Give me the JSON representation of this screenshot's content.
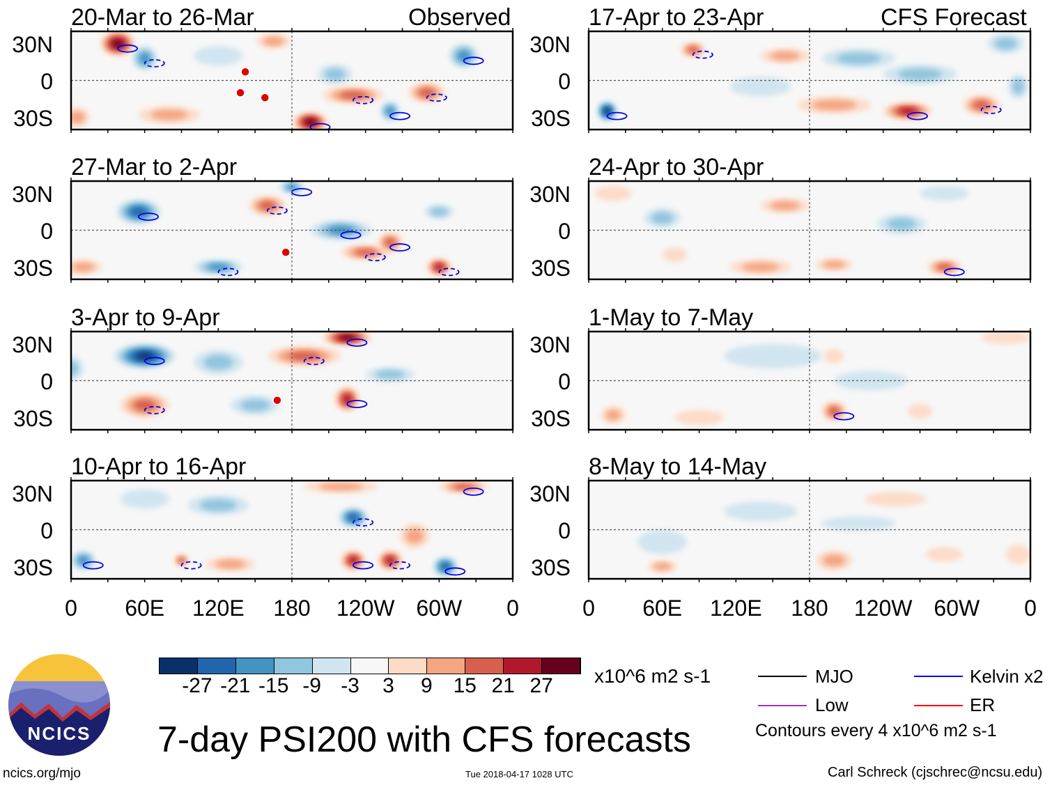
{
  "headers": {
    "observed": "Observed",
    "forecast": "CFS Forecast"
  },
  "lat_labels": [
    "30N",
    "0",
    "30S"
  ],
  "lon_labels": [
    "0",
    "60E",
    "120E",
    "180",
    "120W",
    "60W",
    "0"
  ],
  "panels": [
    {
      "title": "20-Mar to 26-Mar",
      "blobs": [
        [
          38,
          30,
          27,
          14,
          10
        ],
        [
          60,
          18,
          -18,
          10,
          10
        ],
        [
          120,
          20,
          -6,
          20,
          8
        ],
        [
          165,
          32,
          12,
          14,
          6
        ],
        [
          215,
          5,
          -12,
          14,
          8
        ],
        [
          195,
          -34,
          27,
          14,
          8
        ],
        [
          230,
          -12,
          18,
          25,
          7
        ],
        [
          260,
          -25,
          -15,
          8,
          8
        ],
        [
          290,
          -10,
          15,
          15,
          8
        ],
        [
          320,
          20,
          -18,
          12,
          10
        ],
        [
          80,
          -28,
          9,
          25,
          7
        ],
        [
          5,
          -30,
          12,
          10,
          8
        ]
      ],
      "mjo_markers": [
        [
          142,
          7
        ],
        [
          138,
          -10
        ],
        [
          158,
          -14
        ]
      ]
    },
    {
      "title": "27-Mar to 2-Apr",
      "blobs": [
        [
          55,
          15,
          -21,
          18,
          10
        ],
        [
          160,
          20,
          15,
          15,
          8
        ],
        [
          220,
          0,
          -15,
          25,
          8
        ],
        [
          240,
          -18,
          18,
          20,
          6
        ],
        [
          260,
          -10,
          15,
          10,
          8
        ],
        [
          300,
          -30,
          21,
          10,
          7
        ],
        [
          180,
          35,
          -18,
          10,
          5
        ],
        [
          300,
          15,
          -12,
          12,
          6
        ],
        [
          120,
          -30,
          -15,
          20,
          6
        ],
        [
          10,
          -30,
          12,
          15,
          6
        ]
      ],
      "mjo_markers": [
        [
          175,
          -18
        ]
      ]
    },
    {
      "title": "3-Apr to 9-Apr",
      "blobs": [
        [
          60,
          20,
          -27,
          25,
          10
        ],
        [
          190,
          20,
          15,
          30,
          8
        ],
        [
          225,
          35,
          27,
          20,
          6
        ],
        [
          60,
          -20,
          18,
          20,
          10
        ],
        [
          150,
          -20,
          -12,
          20,
          8
        ],
        [
          225,
          -15,
          21,
          10,
          10
        ],
        [
          120,
          15,
          -9,
          20,
          10
        ],
        [
          260,
          5,
          -9,
          20,
          6
        ],
        [
          0,
          10,
          -9,
          10,
          10
        ]
      ],
      "mjo_markers": [
        [
          168,
          -16
        ]
      ]
    },
    {
      "title": "10-Apr to 16-Apr",
      "blobs": [
        [
          10,
          -25,
          -15,
          10,
          8
        ],
        [
          120,
          20,
          -9,
          25,
          8
        ],
        [
          230,
          10,
          -21,
          12,
          8
        ],
        [
          230,
          -25,
          21,
          10,
          8
        ],
        [
          260,
          -25,
          21,
          10,
          8
        ],
        [
          305,
          -30,
          -21,
          10,
          8
        ],
        [
          280,
          -5,
          9,
          12,
          10
        ],
        [
          130,
          -28,
          12,
          20,
          6
        ],
        [
          90,
          -25,
          15,
          6,
          5
        ],
        [
          220,
          35,
          12,
          30,
          5
        ],
        [
          320,
          35,
          18,
          20,
          5
        ],
        [
          60,
          25,
          -6,
          20,
          8
        ]
      ],
      "mjo_markers": []
    },
    {
      "title": "17-Apr to 23-Apr",
      "blobs": [
        [
          15,
          -25,
          -27,
          8,
          8
        ],
        [
          85,
          25,
          15,
          10,
          6
        ],
        [
          160,
          20,
          9,
          20,
          6
        ],
        [
          220,
          18,
          -12,
          30,
          8
        ],
        [
          270,
          5,
          -9,
          30,
          8
        ],
        [
          260,
          -25,
          21,
          20,
          7
        ],
        [
          320,
          -20,
          15,
          15,
          8
        ],
        [
          200,
          -20,
          12,
          30,
          7
        ],
        [
          140,
          -5,
          -6,
          25,
          8
        ],
        [
          350,
          -5,
          -12,
          8,
          10
        ],
        [
          340,
          30,
          -12,
          15,
          8
        ]
      ],
      "mjo_markers": []
    },
    {
      "title": "24-Apr to 30-Apr",
      "blobs": [
        [
          60,
          10,
          -9,
          15,
          8
        ],
        [
          160,
          20,
          9,
          20,
          6
        ],
        [
          255,
          5,
          -12,
          20,
          8
        ],
        [
          290,
          -30,
          18,
          14,
          6
        ],
        [
          140,
          -30,
          12,
          25,
          6
        ],
        [
          200,
          -28,
          12,
          15,
          5
        ],
        [
          70,
          -20,
          6,
          10,
          6
        ],
        [
          290,
          30,
          -6,
          20,
          6
        ],
        [
          20,
          30,
          6,
          15,
          6
        ]
      ],
      "mjo_markers": []
    },
    {
      "title": "1-May to 7-May",
      "blobs": [
        [
          200,
          -25,
          15,
          10,
          8
        ],
        [
          20,
          -28,
          12,
          10,
          7
        ],
        [
          150,
          20,
          -3,
          40,
          10
        ],
        [
          200,
          20,
          6,
          8,
          6
        ],
        [
          270,
          -25,
          6,
          10,
          6
        ],
        [
          90,
          -30,
          6,
          20,
          6
        ],
        [
          340,
          35,
          6,
          20,
          5
        ],
        [
          230,
          0,
          -3,
          30,
          8
        ]
      ],
      "mjo_markers": []
    },
    {
      "title": "8-May to 14-May",
      "blobs": [
        [
          60,
          -10,
          -6,
          20,
          10
        ],
        [
          200,
          -25,
          9,
          15,
          8
        ],
        [
          60,
          -30,
          9,
          12,
          5
        ],
        [
          250,
          25,
          6,
          25,
          6
        ],
        [
          290,
          -20,
          6,
          15,
          6
        ],
        [
          140,
          15,
          -6,
          30,
          8
        ],
        [
          350,
          -20,
          6,
          10,
          8
        ],
        [
          220,
          5,
          -3,
          30,
          6
        ]
      ],
      "mjo_markers": []
    }
  ],
  "colorbar": {
    "colors": [
      "#08306b",
      "#2166ac",
      "#4393c3",
      "#92c5de",
      "#d1e5f0",
      "#f7f7f7",
      "#fddbc7",
      "#f4a582",
      "#d6604d",
      "#b2182b",
      "#67001f"
    ],
    "labels": [
      "-27",
      "-21",
      "-15",
      "-9",
      "-3",
      "3",
      "9",
      "15",
      "21",
      "27"
    ],
    "units": "x10^6 m2 s-1"
  },
  "legend": {
    "items": [
      {
        "label": "MJO",
        "color": "#000000"
      },
      {
        "label": "Kelvin x2",
        "color": "#0000ff"
      },
      {
        "label": "Low",
        "color": "#9933cc"
      },
      {
        "label": "ER",
        "color": "#ff0000"
      }
    ],
    "contours": "Contours every 4 x10^6 m2 s-1"
  },
  "title": "7-day PSI200 with CFS forecasts",
  "logo_text": "NCICS",
  "url": "ncics.org/mjo",
  "timestamp": "Tue 2018-04-17 1028 UTC",
  "credit": "Carl Schreck (cjschrec@ncsu.edu)"
}
